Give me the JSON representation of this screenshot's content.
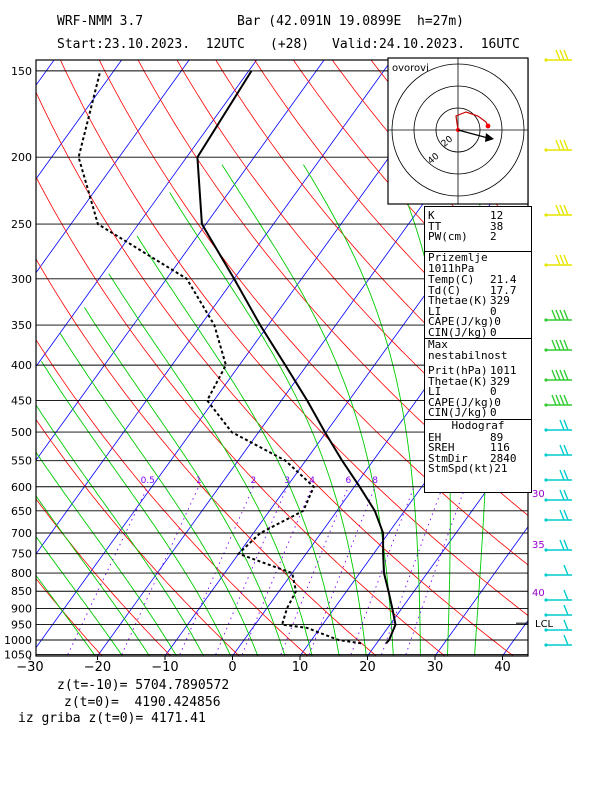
{
  "header": {
    "model": "WRF-NMM 3.7",
    "station": "Bar (42.091N 19.0899E  h=27m)",
    "start": "Start:23.10.2023.  12UTC",
    "step": "(+28)",
    "valid": "Valid:24.10.2023.  16UTC"
  },
  "hodo_label": "ovorovi",
  "hodo_rings": [
    "20",
    "40"
  ],
  "indices": [
    {
      "k": "K",
      "v": "12"
    },
    {
      "k": "TT",
      "v": "38"
    },
    {
      "k": "PW(cm)",
      "v": "2"
    }
  ],
  "surface": {
    "title": "Prizemlje  1011hPa",
    "rows": [
      {
        "k": "Temp(C)",
        "v": "21.4"
      },
      {
        "k": "Td(C)",
        "v": "17.7"
      },
      {
        "k": "Thetae(K)",
        "v": "329"
      },
      {
        "k": "LI",
        "v": "0"
      },
      {
        "k": "CAPE(J/kg)",
        "v": "0"
      },
      {
        "k": "CIN(J/kg)",
        "v": "0"
      }
    ]
  },
  "max_unstable": {
    "title": "Max nestabilnost",
    "rows": [
      {
        "k": "Prit(hPa)",
        "v": "1011"
      },
      {
        "k": "Thetae(K)",
        "v": "329"
      },
      {
        "k": "LI",
        "v": "0"
      },
      {
        "k": "CAPE(J/kg)",
        "v": "0"
      },
      {
        "k": "CIN(J/kg)",
        "v": "0"
      }
    ]
  },
  "hodograph": {
    "title": "Hodograf",
    "rows": [
      {
        "k": "EH",
        "v": "89"
      },
      {
        "k": "SREH",
        "v": "116"
      },
      {
        "k": "StmDir",
        "v": "2840"
      },
      {
        "k": "StmSpd(kt)",
        "v": "21"
      }
    ]
  },
  "footer": {
    "line1": "z(t=-10)= 5704.7890572",
    "line2": "z(t=0)=  4190.424856",
    "line3": "iz griba z(t=0)= 4171.41"
  },
  "lcl_label": "LCL",
  "theta_e_labels": [
    "30",
    "35",
    "40"
  ],
  "mixing_ratio_labels": [
    "0.5",
    "1",
    "2",
    "3",
    "4",
    "6",
    "8"
  ],
  "colors": {
    "isobar": "#000000",
    "isotherm": "#0000ff",
    "dry_adiabat": "#ff0000",
    "moist_adiabat": "#00cc00",
    "mixing_ratio": "#8000ff",
    "frame": "#000000",
    "temp_profile": "#000000",
    "dew_profile": "#000000",
    "wind_barb_upper": "#e6e600",
    "wind_barb_mid": "#33cc33",
    "wind_barb_low": "#00cccc",
    "theta_label": "#9900cc"
  },
  "chart_data": {
    "type": "line",
    "diagram": "skew-T log-p",
    "x_axis": {
      "label": "",
      "range": [
        -30,
        42
      ],
      "ticks": [
        "−30",
        "−20",
        "−10",
        "0",
        "10",
        "20",
        "30",
        "40"
      ]
    },
    "y_axis": {
      "label": "",
      "range": [
        1050,
        150
      ],
      "scale": "log",
      "ticks": [
        "150",
        "200",
        "250",
        "300",
        "350",
        "400",
        "450",
        "500",
        "550",
        "600",
        "650",
        "700",
        "750",
        "800",
        "850",
        "900",
        "950",
        "1000",
        "1050"
      ]
    },
    "series": [
      {
        "style": "solid",
        "points": [
          [
            1011,
            21.4
          ],
          [
            1000,
            21.5
          ],
          [
            950,
            20.8
          ],
          [
            900,
            18.6
          ],
          [
            850,
            16.2
          ],
          [
            800,
            13.6
          ],
          [
            750,
            11.4
          ],
          [
            700,
            9.2
          ],
          [
            650,
            5.6
          ],
          [
            600,
            0.8
          ],
          [
            550,
            -4.6
          ],
          [
            500,
            -10.2
          ],
          [
            450,
            -16.2
          ],
          [
            400,
            -23.2
          ],
          [
            350,
            -31.2
          ],
          [
            300,
            -40.0
          ],
          [
            250,
            -50.6
          ],
          [
            200,
            -58.4
          ],
          [
            150,
            -59.6
          ]
        ]
      },
      {
        "style": "dashed",
        "points": [
          [
            1011,
            17.7
          ],
          [
            1000,
            14.0
          ],
          [
            960,
            8.0
          ],
          [
            950,
            4.0
          ],
          [
            900,
            3.0
          ],
          [
            850,
            2.5
          ],
          [
            800,
            0.0
          ],
          [
            750,
            -10.0
          ],
          [
            700,
            -9.0
          ],
          [
            650,
            -5.0
          ],
          [
            600,
            -6.0
          ],
          [
            550,
            -13.0
          ],
          [
            500,
            -24.0
          ],
          [
            450,
            -31.0
          ],
          [
            400,
            -32.0
          ],
          [
            350,
            -38.0
          ],
          [
            300,
            -47.0
          ],
          [
            250,
            -66.0
          ],
          [
            200,
            -76.0
          ],
          [
            150,
            -82.0
          ]
        ]
      }
    ]
  }
}
